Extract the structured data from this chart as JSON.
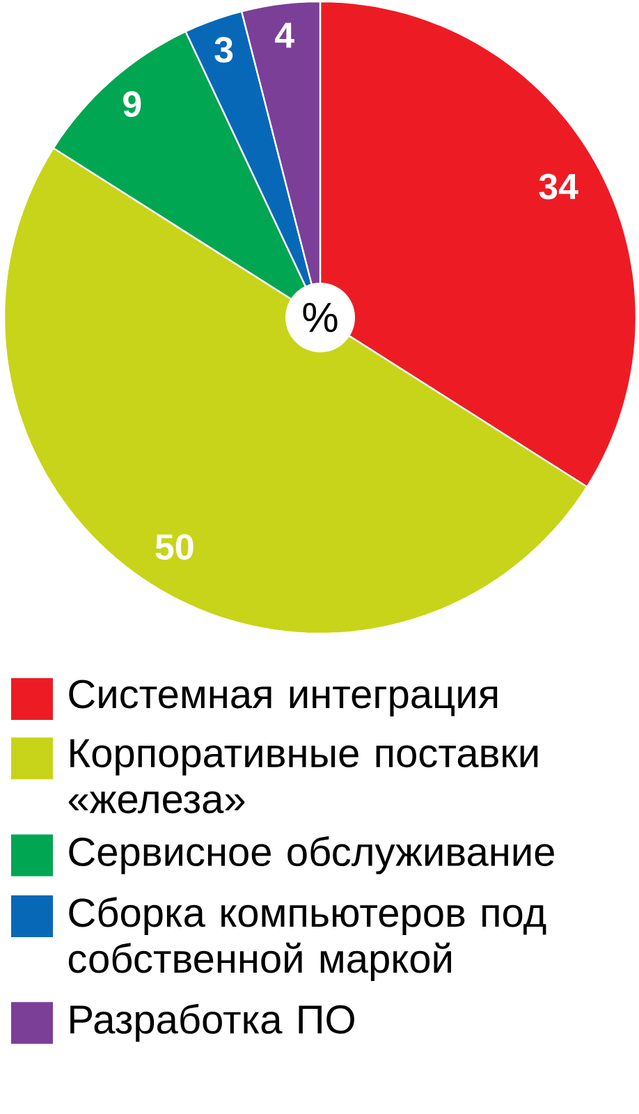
{
  "chart_data": {
    "type": "pie",
    "categories": [
      "Системная интеграция",
      "Корпоративные поставки «железа»",
      "Сервисное обслуживание",
      "Сборка компьютеров под собственной маркой",
      "Разработка ПО"
    ],
    "values": [
      34,
      50,
      9,
      3,
      4
    ],
    "colors": [
      "#ed1c24",
      "#c8d419",
      "#00a651",
      "#0868b8",
      "#7b3f98"
    ],
    "data_labels": true,
    "legend": "bottom",
    "annotations": [
      "%"
    ]
  }
}
